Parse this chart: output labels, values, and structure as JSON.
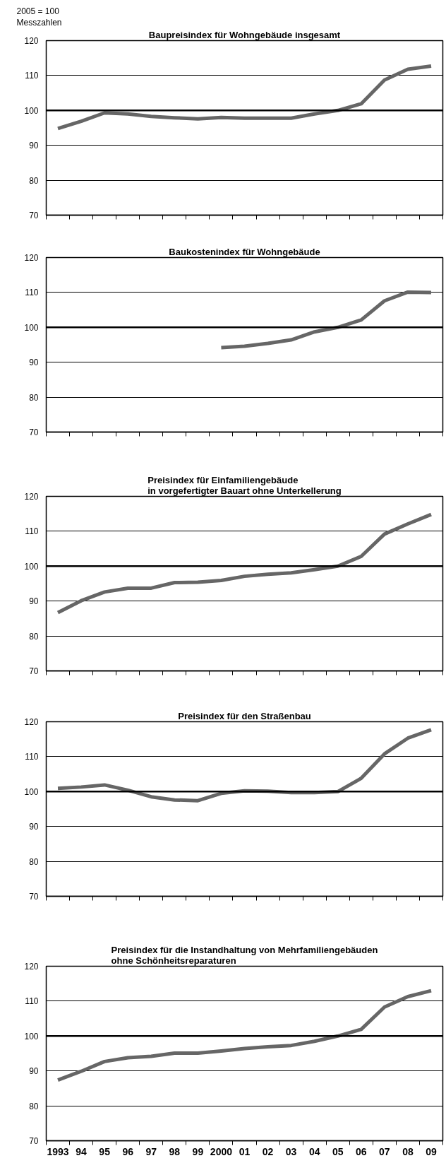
{
  "chart_data": [
    {
      "type": "line",
      "title": "Baupreisindex für Wohngebäude insgesamt",
      "ylabel": "Messzahlen",
      "annotations": [
        "2005 = 100"
      ],
      "categories": [
        "1993",
        "94",
        "95",
        "96",
        "97",
        "98",
        "99",
        "2000",
        "01",
        "02",
        "03",
        "04",
        "05",
        "06",
        "07",
        "08",
        "09"
      ],
      "series": [
        {
          "color": "#666666",
          "values": [
            94.8,
            96.9,
            99.3,
            99.0,
            98.3,
            97.9,
            97.6,
            98.0,
            97.8,
            97.8,
            97.8,
            99.0,
            100.0,
            101.9,
            108.7,
            111.8,
            112.7
          ]
        }
      ],
      "ylim": [
        70,
        120
      ],
      "yticks": [
        70,
        80,
        90,
        100,
        110,
        120
      ],
      "grid": "y",
      "tick_labels": "y",
      "ref_lines": [
        {
          "axis": "y",
          "value": 100,
          "color": "#000000"
        }
      ]
    },
    {
      "type": "line",
      "title": "Baukostenindex für Wohngebäude",
      "categories": [
        "1993",
        "94",
        "95",
        "96",
        "97",
        "98",
        "99",
        "2000",
        "01",
        "02",
        "03",
        "04",
        "05",
        "06",
        "07",
        "08",
        "09"
      ],
      "series": [
        {
          "color": "#666666",
          "values": [
            null,
            null,
            null,
            null,
            null,
            null,
            null,
            94.2,
            94.6,
            95.4,
            96.4,
            98.7,
            100.0,
            102.1,
            107.6,
            110.1,
            110.0
          ]
        }
      ],
      "ylim": [
        70,
        120
      ],
      "yticks": [
        70,
        80,
        90,
        100,
        110,
        120
      ],
      "grid": "y",
      "tick_labels": "y",
      "ref_lines": [
        {
          "axis": "y",
          "value": 100,
          "color": "#000000"
        }
      ]
    },
    {
      "type": "line",
      "title": "Preisindex für Einfamiliengebäude\nin vorgefertigter Bauart ohne Unterkellerung",
      "categories": [
        "1993",
        "94",
        "95",
        "96",
        "97",
        "98",
        "99",
        "2000",
        "01",
        "02",
        "03",
        "04",
        "05",
        "06",
        "07",
        "08",
        "09"
      ],
      "series": [
        {
          "color": "#666666",
          "values": [
            86.7,
            90.1,
            92.6,
            93.7,
            93.7,
            95.3,
            95.4,
            95.9,
            97.1,
            97.7,
            98.1,
            99.0,
            100.0,
            102.8,
            109.2,
            112.1,
            114.8
          ]
        }
      ],
      "ylim": [
        70,
        120
      ],
      "yticks": [
        70,
        80,
        90,
        100,
        110,
        120
      ],
      "grid": "y",
      "tick_labels": "y",
      "ref_lines": [
        {
          "axis": "y",
          "value": 100,
          "color": "#000000"
        }
      ]
    },
    {
      "type": "line",
      "title": "Preisindex für den Straßenbau",
      "categories": [
        "1993",
        "94",
        "95",
        "96",
        "97",
        "98",
        "99",
        "2000",
        "01",
        "02",
        "03",
        "04",
        "05",
        "06",
        "07",
        "08",
        "09"
      ],
      "series": [
        {
          "color": "#666666",
          "values": [
            100.9,
            101.3,
            101.9,
            100.4,
            98.5,
            97.6,
            97.4,
            99.5,
            100.2,
            100.1,
            99.7,
            99.7,
            100.0,
            103.8,
            110.8,
            115.3,
            117.7
          ]
        }
      ],
      "ylim": [
        70,
        120
      ],
      "yticks": [
        70,
        80,
        90,
        100,
        110,
        120
      ],
      "grid": "y",
      "tick_labels": "y",
      "ref_lines": [
        {
          "axis": "y",
          "value": 100,
          "color": "#000000"
        }
      ]
    },
    {
      "type": "line",
      "title": "Preisindex für die Instandhaltung von Mehrfamiliengebäuden\nohne Schönheitsreparaturen",
      "categories": [
        "1993",
        "94",
        "95",
        "96",
        "97",
        "98",
        "99",
        "2000",
        "01",
        "02",
        "03",
        "04",
        "05",
        "06",
        "07",
        "08",
        "09"
      ],
      "series": [
        {
          "color": "#666666",
          "values": [
            87.4,
            89.9,
            92.7,
            93.8,
            94.2,
            95.1,
            95.1,
            95.7,
            96.4,
            96.9,
            97.3,
            98.5,
            100.0,
            101.9,
            108.3,
            111.3,
            113.0
          ]
        }
      ],
      "ylim": [
        70,
        120
      ],
      "yticks": [
        70,
        80,
        90,
        100,
        110,
        120
      ],
      "grid": "y",
      "ref_lines": [
        {
          "axis": "y",
          "value": 100,
          "color": "#000000"
        }
      ]
    }
  ]
}
